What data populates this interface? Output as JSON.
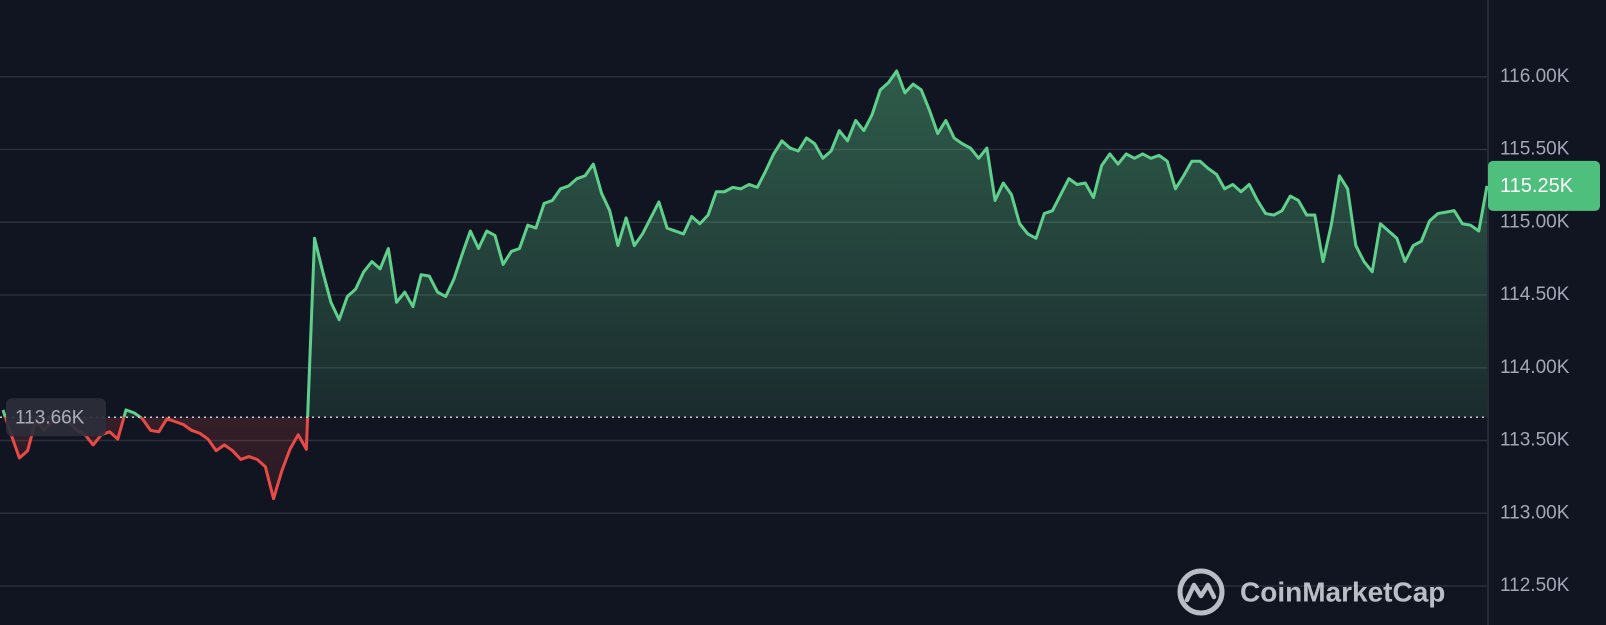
{
  "chart_data": {
    "type": "line",
    "values": [
      113710,
      113540,
      113380,
      113430,
      113640,
      113570,
      113630,
      113640,
      113630,
      113570,
      113540,
      113470,
      113540,
      113560,
      113510,
      113710,
      113690,
      113650,
      113570,
      113560,
      113650,
      113630,
      113610,
      113570,
      113550,
      113510,
      113430,
      113470,
      113430,
      113370,
      113390,
      113370,
      113320,
      113100,
      113290,
      113440,
      113540,
      113440,
      114890,
      114660,
      114450,
      114330,
      114490,
      114540,
      114660,
      114730,
      114680,
      114820,
      114450,
      114520,
      114420,
      114640,
      114630,
      114520,
      114490,
      114610,
      114780,
      114940,
      114820,
      114940,
      114910,
      114710,
      114800,
      114820,
      114980,
      114960,
      115130,
      115150,
      115230,
      115250,
      115300,
      115320,
      115400,
      115200,
      115080,
      114840,
      115030,
      114840,
      114920,
      115030,
      115140,
      114960,
      114940,
      114920,
      115040,
      114990,
      115050,
      115210,
      115210,
      115240,
      115230,
      115260,
      115240,
      115350,
      115470,
      115560,
      115510,
      115490,
      115580,
      115540,
      115440,
      115490,
      115630,
      115560,
      115700,
      115630,
      115740,
      115910,
      115960,
      116040,
      115890,
      115950,
      115910,
      115770,
      115610,
      115700,
      115580,
      115540,
      115510,
      115440,
      115510,
      115150,
      115270,
      115190,
      114990,
      114920,
      114890,
      115060,
      115080,
      115190,
      115300,
      115260,
      115270,
      115170,
      115390,
      115470,
      115400,
      115470,
      115440,
      115470,
      115440,
      115460,
      115420,
      115230,
      115320,
      115420,
      115420,
      115370,
      115330,
      115230,
      115260,
      115210,
      115260,
      115150,
      115060,
      115050,
      115080,
      115180,
      115150,
      115050,
      115050,
      114730,
      114980,
      115320,
      115230,
      114840,
      114730,
      114660,
      114990,
      114940,
      114890,
      114730,
      114840,
      114870,
      115010,
      115060,
      115070,
      115080,
      114990,
      114980,
      114940,
      115250
    ],
    "color": "#5fcf8c",
    "down_color": "#ea4a45",
    "baseline": {
      "value": 113660,
      "label": "113.66K"
    },
    "last_price": {
      "value": 115250,
      "label": "115.25K"
    },
    "ylim": [
      112232,
      116528
    ],
    "yticks": [
      {
        "value": 112500,
        "label": "112.50K"
      },
      {
        "value": 113000,
        "label": "113.00K"
      },
      {
        "value": 113500,
        "label": "113.50K"
      },
      {
        "value": 114000,
        "label": "114.00K"
      },
      {
        "value": 114500,
        "label": "114.50K"
      },
      {
        "value": 115000,
        "label": "115.00K"
      },
      {
        "value": 115500,
        "label": "115.50K"
      },
      {
        "value": 116000,
        "label": "116.00K"
      }
    ],
    "grid": true,
    "watermark": "CoinMarketCap"
  }
}
